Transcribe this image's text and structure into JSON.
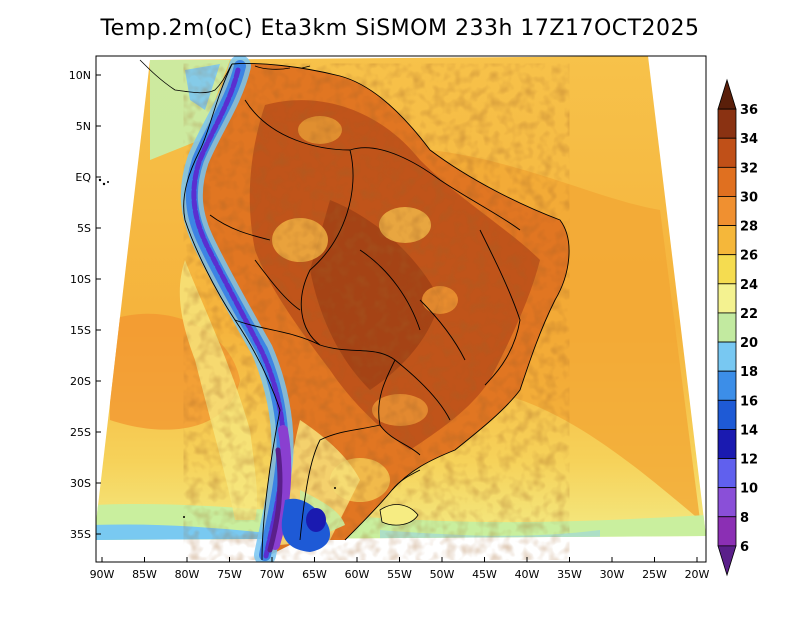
{
  "title": "Temp.2m(oC) Eta3km SiSMOM 233h 17Z17OCT2025",
  "map": {
    "lat_labels": [
      "10N",
      "5N",
      "EQ",
      "5S",
      "10S",
      "15S",
      "20S",
      "25S",
      "30S",
      "35S"
    ],
    "lon_labels": [
      "90W",
      "85W",
      "80W",
      "75W",
      "70W",
      "65W",
      "60W",
      "55W",
      "50W",
      "45W",
      "40W",
      "35W",
      "30W",
      "25W",
      "20W"
    ],
    "lat_range": [
      -38,
      11
    ],
    "lon_range": [
      -91,
      -20
    ]
  },
  "colorbar": {
    "labels": [
      "6",
      "8",
      "10",
      "12",
      "14",
      "16",
      "18",
      "20",
      "22",
      "24",
      "26",
      "28",
      "30",
      "32",
      "34",
      "36"
    ],
    "colors": [
      "#5a1f8a",
      "#8b2fb4",
      "#8a4fd8",
      "#6060ee",
      "#1a1ab0",
      "#1e5ad6",
      "#3c8ee8",
      "#78c8f2",
      "#c2eaa0",
      "#f4f290",
      "#f5dc50",
      "#f5b73a",
      "#f09030",
      "#e07020",
      "#c05018",
      "#8a3212",
      "#5a1f0a"
    ]
  }
}
